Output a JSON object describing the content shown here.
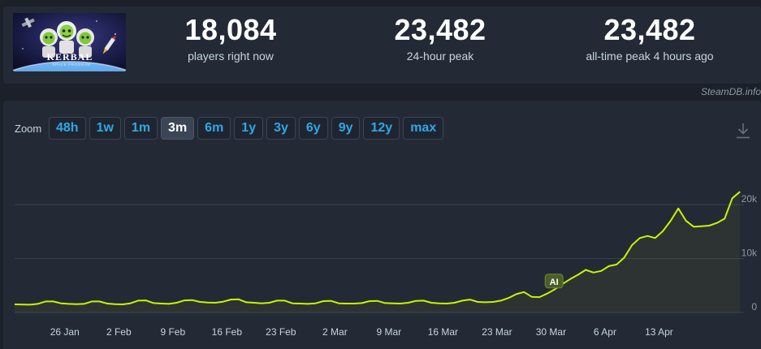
{
  "stats": {
    "current": {
      "value": "18,084",
      "label": "players right now"
    },
    "peak24": {
      "value": "23,482",
      "label": "24-hour peak"
    },
    "alltime": {
      "value": "23,482",
      "label": "all-time peak 4 hours ago"
    }
  },
  "credit": "SteamDB.info",
  "game_logo": {
    "text": "KERBAL",
    "subtext": "SPACE PROGRAM"
  },
  "zoom": {
    "label": "Zoom",
    "options": [
      "48h",
      "1w",
      "1m",
      "3m",
      "6m",
      "1y",
      "3y",
      "6y",
      "9y",
      "12y",
      "max"
    ],
    "selected": "3m"
  },
  "icons": {
    "download": "download-icon"
  },
  "colors": {
    "line": "#c8f400",
    "background": "#1b2029",
    "panel": "#242a35",
    "accent": "#30a7e6"
  },
  "chart_data": {
    "type": "line",
    "title": "",
    "xlabel": "",
    "ylabel": "",
    "ylim": [
      0,
      23482
    ],
    "yticks": [
      0,
      10000,
      20000
    ],
    "ytick_labels": [
      "0",
      "10k",
      "20k"
    ],
    "xticks": [
      {
        "label": "26 Jan",
        "t": 5.0
      },
      {
        "label": "2 Feb",
        "t": 12.0
      },
      {
        "label": "9 Feb",
        "t": 19.0
      },
      {
        "label": "16 Feb",
        "t": 26.0
      },
      {
        "label": "23 Feb",
        "t": 33.0
      },
      {
        "label": "2 Mar",
        "t": 40.0
      },
      {
        "label": "9 Mar",
        "t": 47.0
      },
      {
        "label": "16 Mar",
        "t": 54.0
      },
      {
        "label": "23 Mar",
        "t": 61.0
      },
      {
        "label": "30 Mar",
        "t": 68.0
      },
      {
        "label": "6 Apr",
        "t": 75.0
      },
      {
        "label": "13 Apr",
        "t": 82.0
      }
    ],
    "annotations": [
      {
        "t": 68.5,
        "value": 5600,
        "text": "AI"
      }
    ],
    "series": [
      {
        "color": "#c8f400",
        "points": [
          [
            -1.5,
            1500
          ],
          [
            0.5,
            1450
          ],
          [
            1.5,
            1600
          ],
          [
            2.5,
            2050
          ],
          [
            3.5,
            2050
          ],
          [
            4.5,
            1700
          ],
          [
            5.5,
            1600
          ],
          [
            6.5,
            1550
          ],
          [
            7.5,
            1600
          ],
          [
            8.5,
            2050
          ],
          [
            9.5,
            2050
          ],
          [
            10.5,
            1650
          ],
          [
            11.5,
            1550
          ],
          [
            12.5,
            1500
          ],
          [
            13.5,
            1700
          ],
          [
            14.5,
            2200
          ],
          [
            15.5,
            2250
          ],
          [
            16.5,
            1750
          ],
          [
            17.5,
            1650
          ],
          [
            18.5,
            1600
          ],
          [
            19.5,
            1800
          ],
          [
            20.5,
            2250
          ],
          [
            21.5,
            2300
          ],
          [
            22.5,
            1950
          ],
          [
            23.5,
            1850
          ],
          [
            24.5,
            1800
          ],
          [
            25.5,
            2000
          ],
          [
            26.5,
            2400
          ],
          [
            27.5,
            2450
          ],
          [
            28.5,
            1900
          ],
          [
            29.5,
            1800
          ],
          [
            30.5,
            1700
          ],
          [
            31.5,
            1800
          ],
          [
            32.5,
            2200
          ],
          [
            33.5,
            2200
          ],
          [
            34.5,
            1700
          ],
          [
            35.5,
            1650
          ],
          [
            36.5,
            1600
          ],
          [
            37.5,
            1700
          ],
          [
            38.5,
            2100
          ],
          [
            39.5,
            2150
          ],
          [
            40.5,
            1700
          ],
          [
            41.5,
            1650
          ],
          [
            42.5,
            1650
          ],
          [
            43.5,
            1750
          ],
          [
            44.5,
            2100
          ],
          [
            45.5,
            2150
          ],
          [
            46.5,
            1750
          ],
          [
            47.5,
            1700
          ],
          [
            48.5,
            1650
          ],
          [
            49.5,
            1800
          ],
          [
            50.5,
            2150
          ],
          [
            51.5,
            2200
          ],
          [
            52.5,
            1800
          ],
          [
            53.5,
            1700
          ],
          [
            54.5,
            1650
          ],
          [
            55.5,
            1800
          ],
          [
            56.5,
            2200
          ],
          [
            57.5,
            2400
          ],
          [
            58.5,
            1950
          ],
          [
            59.5,
            1900
          ],
          [
            60.5,
            1950
          ],
          [
            61.5,
            2200
          ],
          [
            62.5,
            2700
          ],
          [
            63.5,
            3400
          ],
          [
            64.5,
            3800
          ],
          [
            65.5,
            2900
          ],
          [
            66.5,
            2850
          ],
          [
            67.5,
            3500
          ],
          [
            68.5,
            4300
          ],
          [
            69.5,
            5300
          ],
          [
            70.5,
            6200
          ],
          [
            71.5,
            7000
          ],
          [
            72.5,
            7900
          ],
          [
            73.5,
            7400
          ],
          [
            74.5,
            7700
          ],
          [
            75.5,
            8600
          ],
          [
            76.5,
            8900
          ],
          [
            77.5,
            10200
          ],
          [
            78.5,
            12500
          ],
          [
            79.5,
            13800
          ],
          [
            80.5,
            14200
          ],
          [
            81.5,
            13800
          ],
          [
            82.5,
            15100
          ],
          [
            83.5,
            17000
          ],
          [
            84.5,
            19300
          ],
          [
            85.5,
            17000
          ],
          [
            86.5,
            15900
          ],
          [
            87.5,
            16000
          ],
          [
            88.5,
            16100
          ],
          [
            89.5,
            16600
          ],
          [
            90.5,
            17400
          ],
          [
            91.5,
            21200
          ],
          [
            92.5,
            22400
          ]
        ]
      }
    ]
  }
}
